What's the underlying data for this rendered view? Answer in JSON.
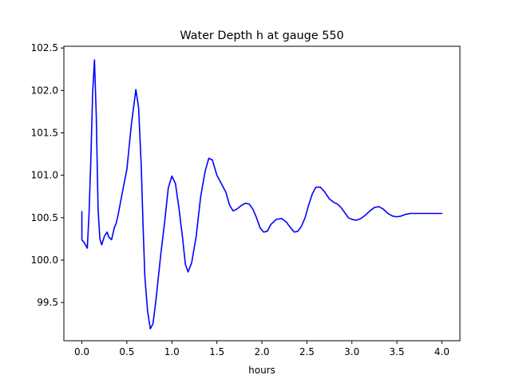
{
  "chart_data": {
    "type": "line",
    "title": "Water Depth h at gauge 550",
    "xlabel": "hours",
    "ylabel": "",
    "xlim": [
      -0.2,
      4.2
    ],
    "ylim": [
      99.05,
      102.52
    ],
    "xticks": [
      0.0,
      0.5,
      1.0,
      1.5,
      2.0,
      2.5,
      3.0,
      3.5,
      4.0
    ],
    "xtick_labels": [
      "0.0",
      "0.5",
      "1.0",
      "1.5",
      "2.0",
      "2.5",
      "3.0",
      "3.5",
      "4.0"
    ],
    "yticks": [
      99.5,
      100.0,
      100.5,
      101.0,
      101.5,
      102.0,
      102.5
    ],
    "ytick_labels": [
      "99.5",
      "100.0",
      "100.5",
      "101.0",
      "101.5",
      "102.0",
      "102.5"
    ],
    "grid": false,
    "line_color": "#0000ff",
    "series": [
      {
        "x": [
          0.0,
          0.0,
          0.03,
          0.06,
          0.08,
          0.1,
          0.12,
          0.14,
          0.16,
          0.18,
          0.2,
          0.22,
          0.25,
          0.28,
          0.3,
          0.33,
          0.36,
          0.38,
          0.4,
          0.42,
          0.45,
          0.5,
          0.55,
          0.6,
          0.63,
          0.66,
          0.68,
          0.7,
          0.73,
          0.76,
          0.79,
          0.82,
          0.85,
          0.88,
          0.92,
          0.96,
          1.0,
          1.04,
          1.08,
          1.12,
          1.15,
          1.18,
          1.22,
          1.27,
          1.32,
          1.37,
          1.41,
          1.45,
          1.5,
          1.55,
          1.6,
          1.64,
          1.68,
          1.72,
          1.78,
          1.82,
          1.86,
          1.9,
          1.94,
          1.98,
          2.02,
          2.06,
          2.1,
          2.16,
          2.22,
          2.27,
          2.32,
          2.36,
          2.4,
          2.44,
          2.48,
          2.52,
          2.56,
          2.6,
          2.65,
          2.7,
          2.75,
          2.8,
          2.84,
          2.88,
          2.92,
          2.96,
          3.0,
          3.05,
          3.1,
          3.15,
          3.2,
          3.25,
          3.3,
          3.35,
          3.4,
          3.45,
          3.5,
          3.55,
          3.6,
          3.65,
          3.7,
          3.75,
          3.8,
          3.85,
          3.9,
          3.95,
          4.0
        ],
        "y": [
          100.57,
          100.24,
          100.2,
          100.14,
          100.55,
          101.2,
          101.98,
          102.36,
          101.7,
          100.6,
          100.25,
          100.18,
          100.28,
          100.33,
          100.27,
          100.24,
          100.38,
          100.43,
          100.52,
          100.63,
          100.8,
          101.07,
          101.6,
          102.01,
          101.8,
          101.1,
          100.4,
          99.8,
          99.4,
          99.19,
          99.25,
          99.5,
          99.8,
          100.1,
          100.45,
          100.85,
          100.99,
          100.9,
          100.6,
          100.25,
          99.95,
          99.86,
          99.97,
          100.28,
          100.75,
          101.05,
          101.2,
          101.18,
          101.0,
          100.9,
          100.8,
          100.65,
          100.58,
          100.6,
          100.65,
          100.67,
          100.66,
          100.6,
          100.5,
          100.38,
          100.33,
          100.34,
          100.42,
          100.48,
          100.49,
          100.45,
          100.38,
          100.33,
          100.34,
          100.4,
          100.5,
          100.65,
          100.78,
          100.86,
          100.86,
          100.8,
          100.72,
          100.68,
          100.66,
          100.62,
          100.56,
          100.5,
          100.48,
          100.47,
          100.49,
          100.53,
          100.58,
          100.62,
          100.63,
          100.6,
          100.55,
          100.52,
          100.51,
          100.52,
          100.54,
          100.55,
          100.55,
          100.55,
          100.55,
          100.55,
          100.55,
          100.55,
          100.55
        ]
      }
    ]
  }
}
